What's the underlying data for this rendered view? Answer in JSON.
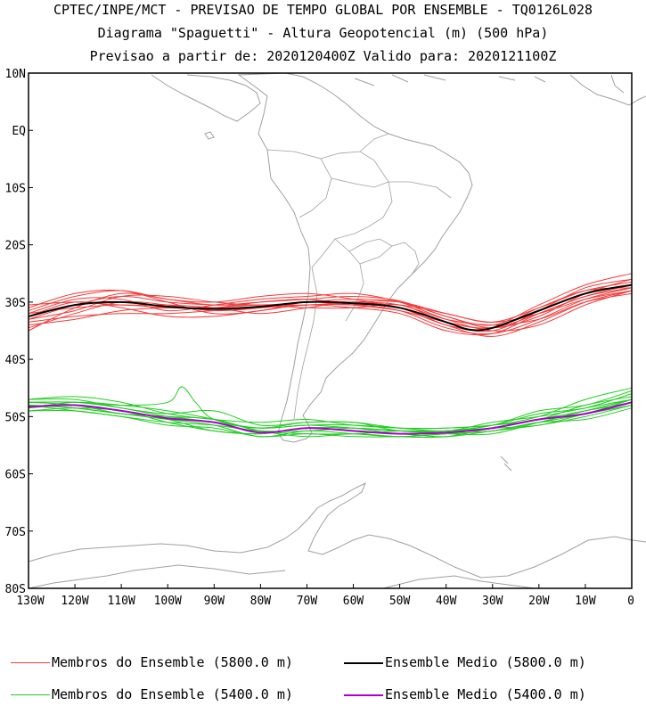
{
  "header": {
    "line1": "CPTEC/INPE/MCT - PREVISAO DE TEMPO GLOBAL POR ENSEMBLE - TQ0126L028",
    "line2": "Diagrama \"Spaguetti\" - Altura Geopotencial (m) (500 hPa)",
    "line3": "Previsao a partir de: 2020120400Z  Valido para: 2020121100Z"
  },
  "axes": {
    "lat_labels": [
      "10N",
      "EQ",
      "10S",
      "20S",
      "30S",
      "40S",
      "50S",
      "60S",
      "70S",
      "80S"
    ],
    "lon_labels": [
      "130W",
      "120W",
      "110W",
      "100W",
      "90W",
      "80W",
      "70W",
      "60W",
      "50W",
      "40W",
      "30W",
      "20W",
      "10W",
      "0"
    ]
  },
  "colors": {
    "members_5800": "#f03c3c",
    "mean_5800": "#000000",
    "members_5400": "#22cc22",
    "mean_5400": "#aa00cc",
    "coast": "#a0a0a0"
  },
  "legend": {
    "members_5800": "Membros do Ensemble (5800.0 m)",
    "mean_5800": "Ensemble Medio (5800.0 m)",
    "members_5400": "Membros do Ensemble (5400.0 m)",
    "mean_5400": "Ensemble Medio (5400.0 m)"
  },
  "chart_data": {
    "type": "line",
    "xlim": [
      -130,
      0
    ],
    "ylim": [
      -80,
      10
    ],
    "mean_5800": {
      "lon": [
        -130,
        -120,
        -110,
        -100,
        -90,
        -80,
        -70,
        -60,
        -50,
        -40,
        -35,
        -30,
        -20,
        -10,
        0
      ],
      "lat": [
        -32.5,
        -30.5,
        -30.0,
        -30.8,
        -31.2,
        -30.8,
        -30.0,
        -30.2,
        -31.0,
        -33.5,
        -34.8,
        -34.5,
        -31.5,
        -28.5,
        -27.0
      ]
    },
    "mean_5400": {
      "lon": [
        -130,
        -120,
        -110,
        -100,
        -90,
        -80,
        -70,
        -60,
        -50,
        -40,
        -30,
        -20,
        -10,
        0
      ],
      "lat": [
        -48.3,
        -48.0,
        -49.0,
        -50.3,
        -51.0,
        -52.8,
        -52.0,
        -52.5,
        -53.0,
        -52.8,
        -52.0,
        -50.5,
        -49.5,
        -47.5
      ]
    },
    "members_5800": [
      {
        "lon": [
          -130,
          -120,
          -110,
          -100,
          -90,
          -80,
          -70,
          -60,
          -50,
          -40,
          -30,
          -20,
          -10,
          0
        ],
        "lat": [
          -35.0,
          -31.0,
          -28.5,
          -29.5,
          -30.5,
          -30.0,
          -29.5,
          -29.0,
          -29.8,
          -32.5,
          -34.0,
          -30.5,
          -27.0,
          -25.0
        ]
      },
      {
        "lon": [
          -130,
          -120,
          -110,
          -100,
          -90,
          -80,
          -70,
          -60,
          -50,
          -40,
          -30,
          -20,
          -10,
          0
        ],
        "lat": [
          -33.5,
          -32.5,
          -32.0,
          -32.0,
          -31.5,
          -31.0,
          -30.5,
          -30.5,
          -31.5,
          -34.5,
          -35.5,
          -33.0,
          -29.5,
          -27.5
        ]
      },
      {
        "lon": [
          -130,
          -120,
          -110,
          -100,
          -90,
          -80,
          -70,
          -60,
          -50,
          -40,
          -30,
          -20,
          -10,
          0
        ],
        "lat": [
          -31.0,
          -28.5,
          -28.0,
          -30.0,
          -32.0,
          -31.5,
          -30.0,
          -30.5,
          -30.5,
          -32.0,
          -33.5,
          -31.0,
          -28.0,
          -26.5
        ]
      },
      {
        "lon": [
          -130,
          -120,
          -110,
          -100,
          -90,
          -80,
          -70,
          -60,
          -50,
          -40,
          -30,
          -20,
          -10,
          0
        ],
        "lat": [
          -32.0,
          -29.5,
          -29.5,
          -31.5,
          -30.5,
          -29.5,
          -29.0,
          -28.5,
          -30.0,
          -33.0,
          -35.0,
          -34.0,
          -30.5,
          -28.0
        ]
      },
      {
        "lon": [
          -130,
          -120,
          -110,
          -100,
          -90,
          -80,
          -70,
          -60,
          -50,
          -40,
          -30,
          -20,
          -10,
          0
        ],
        "lat": [
          -34.0,
          -33.0,
          -31.5,
          -31.0,
          -31.0,
          -30.5,
          -31.0,
          -31.0,
          -30.5,
          -33.5,
          -34.5,
          -32.0,
          -29.0,
          -27.5
        ]
      },
      {
        "lon": [
          -130,
          -120,
          -110,
          -100,
          -90,
          -80,
          -70,
          -60,
          -50,
          -40,
          -30,
          -20,
          -10,
          0
        ],
        "lat": [
          -30.5,
          -30.0,
          -30.5,
          -30.5,
          -31.0,
          -32.0,
          -31.0,
          -30.0,
          -31.0,
          -34.0,
          -36.0,
          -33.5,
          -30.0,
          -28.0
        ]
      },
      {
        "lon": [
          -130,
          -120,
          -110,
          -100,
          -90,
          -80,
          -70,
          -60,
          -50,
          -40,
          -30,
          -20,
          -10,
          0
        ],
        "lat": [
          -33.0,
          -31.5,
          -29.0,
          -29.0,
          -30.0,
          -30.5,
          -30.0,
          -29.5,
          -30.0,
          -32.5,
          -34.5,
          -32.5,
          -28.5,
          -26.0
        ]
      },
      {
        "lon": [
          -130,
          -120,
          -110,
          -100,
          -90,
          -80,
          -70,
          -60,
          -50,
          -40,
          -30,
          -20,
          -10,
          0
        ],
        "lat": [
          -32.5,
          -30.0,
          -31.0,
          -32.5,
          -32.5,
          -31.5,
          -30.5,
          -31.0,
          -32.0,
          -35.0,
          -35.5,
          -32.0,
          -29.0,
          -27.0
        ]
      },
      {
        "lon": [
          -130,
          -120,
          -110,
          -100,
          -90,
          -80,
          -70,
          -60,
          -50,
          -40,
          -30,
          -20,
          -10,
          0
        ],
        "lat": [
          -31.5,
          -29.0,
          -28.0,
          -29.5,
          -30.0,
          -29.0,
          -28.5,
          -29.5,
          -31.0,
          -34.0,
          -35.0,
          -31.5,
          -27.5,
          -26.0
        ]
      },
      {
        "lon": [
          -130,
          -120,
          -110,
          -100,
          -90,
          -80,
          -70,
          -60,
          -50,
          -40,
          -30,
          -20,
          -10,
          0
        ],
        "lat": [
          -34.5,
          -32.0,
          -30.0,
          -30.5,
          -31.5,
          -31.0,
          -30.0,
          -30.0,
          -30.5,
          -33.0,
          -34.0,
          -33.0,
          -30.0,
          -28.5
        ]
      },
      {
        "lon": [
          -130,
          -120,
          -110,
          -100,
          -90,
          -80,
          -70,
          -60,
          -50,
          -40,
          -30,
          -20,
          -10,
          0
        ],
        "lat": [
          -32.0,
          -31.0,
          -30.5,
          -31.0,
          -31.0,
          -30.0,
          -29.5,
          -30.5,
          -31.5,
          -33.5,
          -34.5,
          -31.0,
          -28.0,
          -27.5
        ]
      },
      {
        "lon": [
          -130,
          -120,
          -110,
          -100,
          -90,
          -80,
          -70,
          -60,
          -50,
          -40,
          -30,
          -20,
          -10,
          0
        ],
        "lat": [
          -33.0,
          -30.5,
          -29.0,
          -30.0,
          -30.5,
          -30.5,
          -30.5,
          -30.0,
          -30.0,
          -32.0,
          -33.5,
          -32.0,
          -29.5,
          -28.0
        ]
      }
    ],
    "members_5400": [
      {
        "lon": [
          -130,
          -120,
          -110,
          -100,
          -97,
          -94,
          -90,
          -80,
          -70,
          -60,
          -50,
          -40,
          -30,
          -20,
          -10,
          0
        ],
        "lat": [
          -47.5,
          -47.5,
          -48.0,
          -47.5,
          -44.8,
          -47.5,
          -50.5,
          -52.0,
          -51.5,
          -52.0,
          -52.5,
          -52.5,
          -51.5,
          -49.5,
          -48.5,
          -46.0
        ]
      },
      {
        "lon": [
          -130,
          -120,
          -110,
          -100,
          -90,
          -80,
          -70,
          -60,
          -50,
          -40,
          -30,
          -20,
          -10,
          0
        ],
        "lat": [
          -48.0,
          -48.5,
          -49.5,
          -50.5,
          -51.5,
          -53.5,
          -52.5,
          -53.0,
          -53.5,
          -53.0,
          -52.5,
          -51.0,
          -49.5,
          -47.0
        ]
      },
      {
        "lon": [
          -130,
          -120,
          -110,
          -100,
          -90,
          -80,
          -70,
          -60,
          -50,
          -40,
          -30,
          -20,
          -10,
          0
        ],
        "lat": [
          -47.0,
          -47.0,
          -48.5,
          -49.5,
          -49.0,
          -51.5,
          -51.0,
          -51.0,
          -52.5,
          -52.5,
          -51.5,
          -49.0,
          -48.0,
          -45.5
        ]
      },
      {
        "lon": [
          -130,
          -120,
          -110,
          -100,
          -90,
          -80,
          -70,
          -60,
          -50,
          -40,
          -30,
          -20,
          -10,
          0
        ],
        "lat": [
          -49.0,
          -48.5,
          -49.0,
          -51.0,
          -52.5,
          -53.0,
          -52.0,
          -52.5,
          -53.0,
          -53.5,
          -52.5,
          -51.5,
          -50.0,
          -48.0
        ]
      },
      {
        "lon": [
          -130,
          -120,
          -110,
          -100,
          -90,
          -80,
          -70,
          -60,
          -50,
          -40,
          -30,
          -20,
          -10,
          0
        ],
        "lat": [
          -48.5,
          -47.5,
          -48.0,
          -49.0,
          -50.5,
          -52.5,
          -53.0,
          -53.0,
          -52.5,
          -52.5,
          -52.0,
          -50.5,
          -49.0,
          -47.5
        ]
      },
      {
        "lon": [
          -130,
          -120,
          -110,
          -100,
          -90,
          -80,
          -70,
          -60,
          -50,
          -40,
          -30,
          -20,
          -10,
          0
        ],
        "lat": [
          -47.5,
          -48.0,
          -49.5,
          -50.0,
          -51.0,
          -52.0,
          -51.5,
          -51.5,
          -52.0,
          -52.5,
          -51.0,
          -50.0,
          -48.5,
          -47.0
        ]
      },
      {
        "lon": [
          -130,
          -120,
          -110,
          -100,
          -90,
          -80,
          -70,
          -60,
          -50,
          -40,
          -30,
          -20,
          -10,
          0
        ],
        "lat": [
          -48.0,
          -49.0,
          -50.0,
          -51.5,
          -52.0,
          -53.5,
          -53.0,
          -53.5,
          -53.5,
          -53.0,
          -52.5,
          -51.0,
          -50.5,
          -48.5
        ]
      },
      {
        "lon": [
          -130,
          -120,
          -110,
          -100,
          -90,
          -80,
          -70,
          -60,
          -50,
          -40,
          -30,
          -20,
          -10,
          0
        ],
        "lat": [
          -47.0,
          -46.5,
          -47.5,
          -49.5,
          -50.5,
          -51.0,
          -50.5,
          -51.5,
          -52.0,
          -52.0,
          -51.5,
          -50.0,
          -47.0,
          -45.0
        ]
      },
      {
        "lon": [
          -130,
          -120,
          -110,
          -100,
          -90,
          -80,
          -70,
          -60,
          -50,
          -40,
          -30,
          -20,
          -10,
          0
        ],
        "lat": [
          -48.5,
          -48.0,
          -49.0,
          -50.5,
          -52.5,
          -53.0,
          -52.0,
          -52.0,
          -53.0,
          -52.5,
          -52.0,
          -51.5,
          -49.5,
          -47.5
        ]
      },
      {
        "lon": [
          -130,
          -120,
          -110,
          -100,
          -90,
          -80,
          -70,
          -60,
          -50,
          -40,
          -30,
          -20,
          -10,
          0
        ],
        "lat": [
          -49.0,
          -49.0,
          -50.0,
          -51.0,
          -51.5,
          -52.5,
          -52.5,
          -52.0,
          -52.5,
          -53.0,
          -53.0,
          -51.0,
          -49.0,
          -47.0
        ]
      },
      {
        "lon": [
          -130,
          -120,
          -110,
          -100,
          -90,
          -80,
          -70,
          -60,
          -50,
          -40,
          -30,
          -20,
          -10,
          0
        ],
        "lat": [
          -47.5,
          -47.5,
          -48.5,
          -50.0,
          -51.0,
          -52.0,
          -51.0,
          -51.0,
          -52.0,
          -52.0,
          -51.5,
          -50.5,
          -48.0,
          -46.5
        ]
      },
      {
        "lon": [
          -130,
          -120,
          -110,
          -100,
          -90,
          -80,
          -70,
          -60,
          -50,
          -40,
          -30,
          -20,
          -10,
          0
        ],
        "lat": [
          -48.0,
          -48.5,
          -49.5,
          -50.0,
          -50.5,
          -52.5,
          -53.5,
          -53.0,
          -53.5,
          -53.5,
          -52.0,
          -50.5,
          -49.5,
          -48.0
        ]
      }
    ]
  }
}
